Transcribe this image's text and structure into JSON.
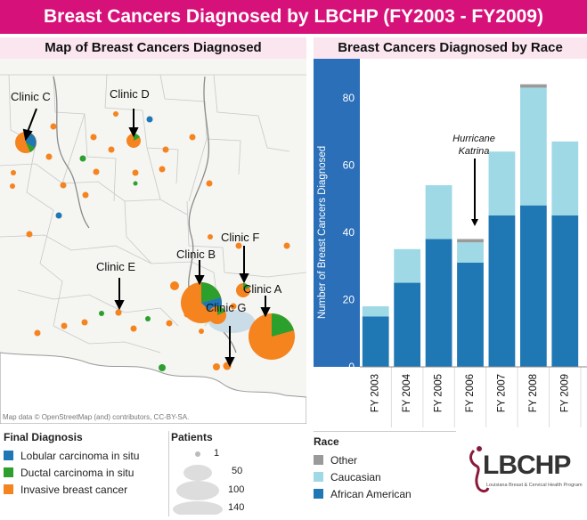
{
  "title": "Breast Cancers Diagnosed by LBCHP (FY2003 - FY2009)",
  "map_panel": {
    "title": "Map of Breast Cancers Diagnosed",
    "attribution": "Map data © OpenStreetMap (and) contributors, CC-BY-SA.",
    "clinic_labels": [
      "Clinic A",
      "Clinic B",
      "Clinic C",
      "Clinic D",
      "Clinic E",
      "Clinic F",
      "Clinic G"
    ]
  },
  "chart_panel": {
    "title": "Breast Cancers Diagnosed by Race",
    "annotation_line1": "Hurricane",
    "annotation_line2": "Katrina"
  },
  "chart_data": {
    "type": "bar",
    "stacked": true,
    "categories": [
      "FY 2003",
      "FY 2004",
      "FY 2005",
      "FY 2006",
      "FY 2007",
      "FY 2008",
      "FY 2009"
    ],
    "series": [
      {
        "name": "African American",
        "color": "#1f77b4",
        "values": [
          15,
          25,
          38,
          31,
          45,
          48,
          45
        ]
      },
      {
        "name": "Caucasian",
        "color": "#9fd9e6",
        "values": [
          3,
          10,
          16,
          6,
          19,
          35,
          22
        ]
      },
      {
        "name": "Other",
        "color": "#9a9a9a",
        "values": [
          0,
          0,
          0,
          1,
          0,
          1,
          0
        ]
      }
    ],
    "ylabel": "Number of Breast Cancers Diagnosed",
    "ylim": [
      0,
      90
    ],
    "yticks": [
      0,
      20,
      40,
      60,
      80
    ],
    "annotations": [
      "Hurricane Katrina"
    ],
    "grid": false
  },
  "legend_diagnosis": {
    "title": "Final Diagnosis",
    "items": [
      {
        "label": "Lobular carcinoma in situ",
        "color": "#1f77b4"
      },
      {
        "label": "Ductal carcinoma in situ",
        "color": "#2ca02c"
      },
      {
        "label": "Invasive breast cancer",
        "color": "#f5841f"
      }
    ]
  },
  "legend_patients": {
    "title": "Patients",
    "values": [
      "1",
      "50",
      "100",
      "140"
    ]
  },
  "legend_race": {
    "title": "Race",
    "items": [
      {
        "label": "Other",
        "color": "#9a9a9a"
      },
      {
        "label": "Caucasian",
        "color": "#9fd9e6"
      },
      {
        "label": "African American",
        "color": "#1f77b4"
      }
    ]
  },
  "logo": {
    "text": "LBCHP",
    "subtitle": "Louisiana Breast & Cervical Health Program"
  }
}
